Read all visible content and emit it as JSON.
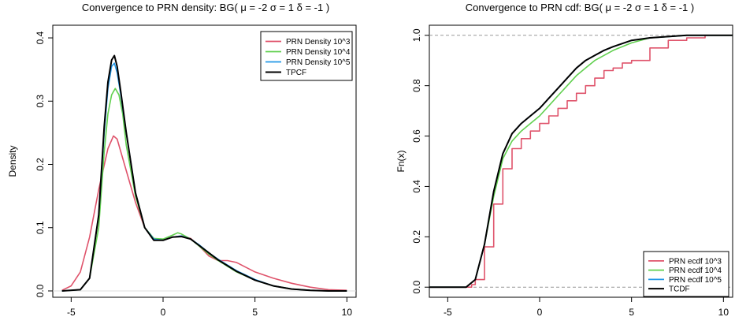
{
  "colors": {
    "red": "#DF536B",
    "green": "#61D04F",
    "blue": "#2297E6",
    "black": "#000000",
    "reference_line": "#999999"
  },
  "chart_data": [
    {
      "type": "line",
      "title": "Convergence to PRN density: BG( μ = -2 σ = 1 δ = -1 )",
      "xlabel": "",
      "ylabel": "Density",
      "xlim": [
        -6,
        10.5
      ],
      "ylim": [
        -0.01,
        0.42
      ],
      "x_ticks": [
        -5,
        0,
        5,
        10
      ],
      "x_tick_labels": [
        "-5",
        "0",
        "5",
        "10"
      ],
      "y_ticks": [
        0,
        0.1,
        0.2,
        0.3,
        0.4
      ],
      "y_tick_labels": [
        "0.0",
        "0.1",
        "0.2",
        "0.3",
        "0.4"
      ],
      "grid": false,
      "legend_position": "top-right",
      "legend": [
        "PRN Density 10^3",
        "PRN Density 10^4",
        "PRN Density 10^5",
        "TPCF"
      ],
      "series": [
        {
          "name": "PRN Density 10^3",
          "color": "#DF536B",
          "x": [
            -5.5,
            -5,
            -4.5,
            -4,
            -3.5,
            -3,
            -2.7,
            -2.5,
            -2,
            -1.5,
            -1,
            -0.5,
            0,
            0.5,
            1,
            1.5,
            2,
            2.5,
            3,
            3.5,
            4,
            5,
            6,
            7,
            8,
            9,
            10
          ],
          "y": [
            0.001,
            0.008,
            0.03,
            0.085,
            0.16,
            0.225,
            0.245,
            0.24,
            0.19,
            0.14,
            0.1,
            0.082,
            0.08,
            0.085,
            0.087,
            0.083,
            0.07,
            0.055,
            0.048,
            0.048,
            0.045,
            0.03,
            0.02,
            0.012,
            0.006,
            0.002,
            0.001
          ]
        },
        {
          "name": "PRN Density 10^4",
          "color": "#61D04F",
          "x": [
            -5.5,
            -4.5,
            -4,
            -3.5,
            -3.2,
            -3,
            -2.8,
            -2.6,
            -2.4,
            -2.2,
            -2,
            -1.5,
            -1,
            -0.5,
            0,
            0.5,
            0.8,
            1,
            1.5,
            2,
            2.5,
            3,
            4,
            5,
            6,
            7,
            8,
            9,
            10
          ],
          "y": [
            0,
            0.002,
            0.02,
            0.1,
            0.22,
            0.28,
            0.31,
            0.32,
            0.31,
            0.28,
            0.23,
            0.15,
            0.1,
            0.083,
            0.082,
            0.088,
            0.092,
            0.09,
            0.082,
            0.07,
            0.058,
            0.048,
            0.03,
            0.017,
            0.008,
            0.003,
            0.001,
            0,
            0
          ]
        },
        {
          "name": "PRN Density 10^5",
          "color": "#2297E6",
          "x": [
            -5.5,
            -4.5,
            -4,
            -3.5,
            -3.2,
            -3,
            -2.8,
            -2.65,
            -2.5,
            -2.3,
            -2,
            -1.5,
            -1,
            -0.5,
            0,
            0.5,
            1,
            1.5,
            2,
            2.5,
            3,
            4,
            5,
            6,
            7,
            8,
            9,
            10
          ],
          "y": [
            0,
            0.002,
            0.02,
            0.12,
            0.25,
            0.32,
            0.355,
            0.36,
            0.345,
            0.31,
            0.25,
            0.155,
            0.1,
            0.082,
            0.08,
            0.085,
            0.087,
            0.082,
            0.072,
            0.06,
            0.05,
            0.032,
            0.018,
            0.008,
            0.003,
            0.001,
            0,
            0
          ]
        },
        {
          "name": "TPCF",
          "color": "#000000",
          "x": [
            -5.5,
            -4.5,
            -4,
            -3.5,
            -3.2,
            -3,
            -2.8,
            -2.65,
            -2.5,
            -2.3,
            -2,
            -1.5,
            -1,
            -0.5,
            0,
            0.5,
            1,
            1.5,
            2,
            2.5,
            3,
            4,
            5,
            6,
            7,
            8,
            9,
            10
          ],
          "y": [
            0,
            0.002,
            0.02,
            0.12,
            0.26,
            0.33,
            0.365,
            0.372,
            0.355,
            0.315,
            0.25,
            0.155,
            0.1,
            0.08,
            0.08,
            0.085,
            0.086,
            0.082,
            0.071,
            0.06,
            0.049,
            0.031,
            0.017,
            0.008,
            0.003,
            0.001,
            0,
            0
          ]
        }
      ]
    },
    {
      "type": "line",
      "title": "Convergence to PRN cdf: BG( μ = -2 σ = 1 δ = -1 )",
      "xlabel": "",
      "ylabel": "Fn(x)",
      "xlim": [
        -6,
        10.5
      ],
      "ylim": [
        -0.04,
        1.04
      ],
      "x_ticks": [
        -5,
        0,
        5,
        10
      ],
      "x_tick_labels": [
        "-5",
        "0",
        "5",
        "10"
      ],
      "y_ticks": [
        0,
        0.2,
        0.4,
        0.6,
        0.8,
        1.0
      ],
      "y_tick_labels": [
        "0.0",
        "0.2",
        "0.4",
        "0.6",
        "0.8",
        "1.0"
      ],
      "reference_lines_y": [
        0,
        1
      ],
      "grid": false,
      "legend_position": "bottom-right",
      "legend": [
        "PRN ecdf 10^3",
        "PRN ecdf 10^4",
        "PRN ecdf 10^5",
        "TCDF"
      ],
      "series": [
        {
          "name": "PRN ecdf 10^3",
          "color": "#DF536B",
          "x": [
            -6,
            -4,
            -3.7,
            -3.5,
            -3,
            -2.5,
            -2,
            -1.5,
            -1,
            -0.5,
            0,
            0.5,
            1,
            1.5,
            2,
            2.5,
            3,
            3.5,
            4,
            4.5,
            5,
            6,
            7,
            8,
            9,
            10,
            10.5
          ],
          "y": [
            0,
            0,
            0.01,
            0.03,
            0.16,
            0.33,
            0.47,
            0.55,
            0.59,
            0.62,
            0.65,
            0.68,
            0.71,
            0.74,
            0.77,
            0.8,
            0.83,
            0.86,
            0.87,
            0.89,
            0.9,
            0.95,
            0.98,
            0.99,
            1,
            1,
            1
          ]
        },
        {
          "name": "PRN ecdf 10^4",
          "color": "#61D04F",
          "x": [
            -6,
            -4,
            -3.5,
            -3,
            -2.5,
            -2,
            -1.5,
            -1,
            -0.5,
            0,
            0.5,
            1,
            1.5,
            2,
            2.5,
            3,
            3.5,
            4,
            5,
            6,
            7,
            8,
            9,
            10,
            10.5
          ],
          "y": [
            0,
            0,
            0.03,
            0.17,
            0.36,
            0.51,
            0.58,
            0.62,
            0.65,
            0.68,
            0.72,
            0.76,
            0.8,
            0.84,
            0.87,
            0.9,
            0.92,
            0.94,
            0.97,
            0.99,
            0.995,
            1,
            1,
            1,
            1
          ]
        },
        {
          "name": "PRN ecdf 10^5",
          "color": "#2297E6",
          "x": [
            -6,
            -4,
            -3.5,
            -3,
            -2.5,
            -2,
            -1.5,
            -1,
            -0.5,
            0,
            0.5,
            1,
            1.5,
            2,
            2.5,
            3,
            3.5,
            4,
            5,
            6,
            7,
            8,
            9,
            10,
            10.5
          ],
          "y": [
            0,
            0,
            0.03,
            0.17,
            0.38,
            0.53,
            0.61,
            0.65,
            0.68,
            0.71,
            0.75,
            0.79,
            0.83,
            0.87,
            0.9,
            0.92,
            0.94,
            0.955,
            0.98,
            0.99,
            0.995,
            1,
            1,
            1,
            1
          ]
        },
        {
          "name": "TCDF",
          "color": "#000000",
          "x": [
            -6,
            -4,
            -3.5,
            -3,
            -2.5,
            -2,
            -1.5,
            -1,
            -0.5,
            0,
            0.5,
            1,
            1.5,
            2,
            2.5,
            3,
            3.5,
            4,
            5,
            6,
            7,
            8,
            9,
            10,
            10.5
          ],
          "y": [
            0,
            0,
            0.03,
            0.17,
            0.38,
            0.53,
            0.61,
            0.65,
            0.68,
            0.71,
            0.75,
            0.79,
            0.83,
            0.87,
            0.9,
            0.92,
            0.94,
            0.955,
            0.98,
            0.99,
            0.995,
            1,
            1,
            1,
            1
          ]
        }
      ]
    }
  ]
}
